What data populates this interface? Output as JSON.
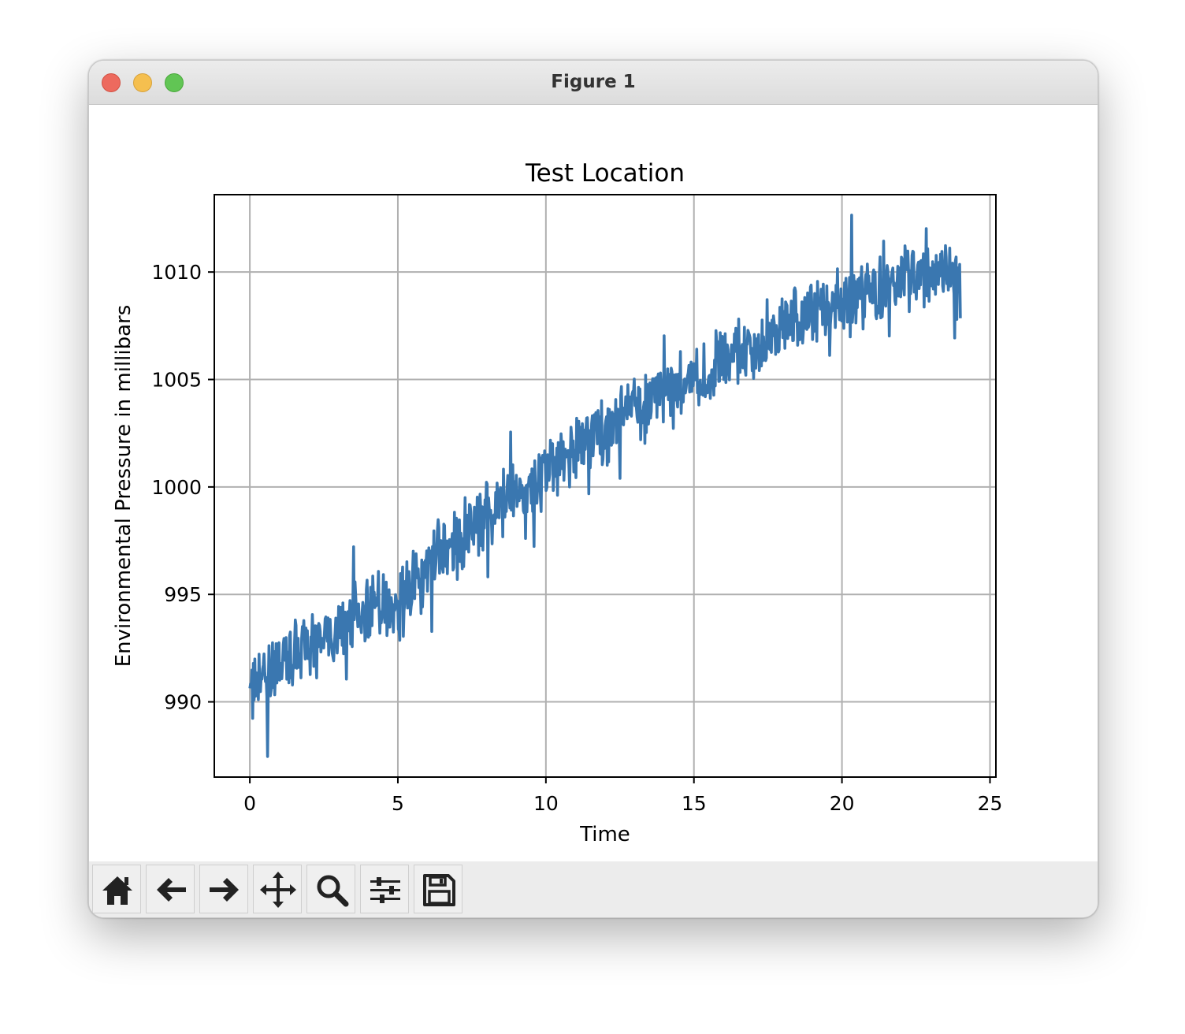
{
  "window": {
    "title": "Figure 1"
  },
  "toolbar": {
    "buttons": [
      {
        "name": "home-button",
        "icon": "home-icon"
      },
      {
        "name": "back-button",
        "icon": "arrow-left-icon"
      },
      {
        "name": "forward-button",
        "icon": "arrow-right-icon"
      },
      {
        "name": "pan-button",
        "icon": "move-arrows-icon"
      },
      {
        "name": "zoom-button",
        "icon": "magnifier-icon"
      },
      {
        "name": "configure-subplots-button",
        "icon": "sliders-icon"
      },
      {
        "name": "save-button",
        "icon": "floppy-disk-icon"
      }
    ]
  },
  "colors": {
    "line": "#3a77b0",
    "grid": "#b0b0b0"
  },
  "chart_data": {
    "type": "line",
    "title": "Test Location",
    "xlabel": "Time",
    "ylabel": "Environmental Pressure in millibars",
    "xlim": [
      -1.2,
      25.2
    ],
    "ylim": [
      986.5,
      1013.6
    ],
    "xticks": [
      0,
      5,
      10,
      15,
      20,
      25
    ],
    "yticks": [
      990,
      995,
      1000,
      1005,
      1010
    ],
    "grid": true,
    "series": [
      {
        "x": [
          0,
          0.5,
          1,
          1.5,
          2,
          2.5,
          3,
          3.5,
          4,
          4.5,
          5,
          5.5,
          6,
          6.5,
          7,
          7.5,
          8,
          8.5,
          9,
          9.5,
          10,
          10.5,
          11,
          11.5,
          12,
          12.5,
          13,
          13.5,
          14,
          14.5,
          15,
          15.5,
          16,
          16.5,
          17,
          17.5,
          18,
          18.5,
          19,
          19.5,
          20,
          20.5,
          21,
          21.5,
          22,
          22.5,
          23,
          23.5,
          24
        ],
        "y": [
          990.5,
          991.0,
          991.6,
          992.1,
          992.4,
          992.9,
          993.4,
          993.8,
          994.1,
          994.5,
          995.0,
          995.6,
          996.2,
          997.0,
          997.6,
          998.3,
          998.8,
          999.2,
          999.6,
          1000.1,
          1000.8,
          1001.2,
          1001.6,
          1002.0,
          1002.6,
          1003.0,
          1003.5,
          1003.9,
          1004.3,
          1004.7,
          1005.1,
          1005.4,
          1005.8,
          1006.1,
          1006.5,
          1007.0,
          1007.4,
          1007.8,
          1008.0,
          1008.3,
          1008.6,
          1008.9,
          1009.1,
          1009.3,
          1009.5,
          1009.8,
          1010.0,
          1010.1,
          1009.2
        ]
      }
    ]
  }
}
